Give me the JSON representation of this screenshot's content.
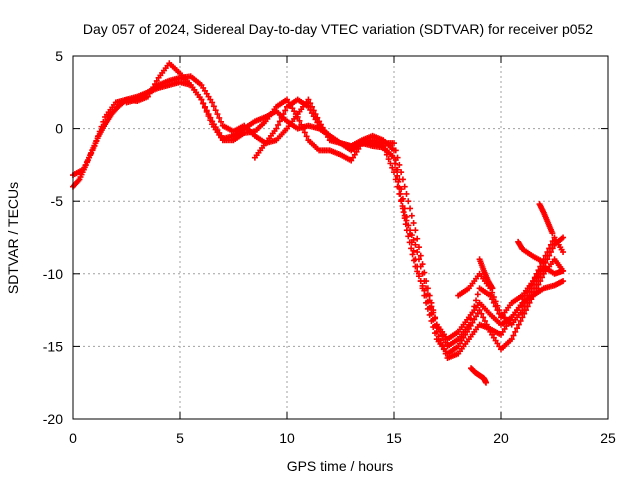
{
  "chart_data": {
    "type": "scatter",
    "title": "Day 057 of 2024, Sidereal Day-to-day VTEC variation (SDTVAR) for receiver p052",
    "xlabel": "GPS time / hours",
    "ylabel": "SDTVAR / TECUs",
    "xlim": [
      0,
      25
    ],
    "ylim": [
      -20,
      5
    ],
    "xticks": [
      0,
      5,
      10,
      15,
      20,
      25
    ],
    "yticks": [
      5,
      0,
      -5,
      -10,
      -15,
      -20
    ],
    "grid": true,
    "legend": "none",
    "marker": "plus",
    "color": "#ff0000",
    "series": [
      {
        "x": [
          0.0,
          0.3,
          0.6,
          0.9,
          1.2,
          1.5,
          1.8,
          2.1,
          2.5,
          3.0,
          3.5,
          4.0,
          4.5,
          5.0,
          5.5,
          6.0,
          6.5,
          7.0,
          7.5,
          8.0,
          8.5,
          9.0,
          9.5,
          10.0,
          10.5,
          11.0,
          11.5,
          12.0,
          12.5,
          13.0,
          13.5,
          14.0,
          14.5,
          15.0,
          15.3,
          15.6,
          16.0,
          16.5,
          17.0,
          17.5,
          18.0,
          18.5,
          19.0,
          19.5,
          20.0,
          20.5,
          21.0,
          21.5,
          22.0,
          22.5,
          22.9
        ],
        "y": [
          -4.0,
          -3.5,
          -2.5,
          -1.5,
          -0.5,
          0.3,
          1.0,
          1.5,
          2.0,
          2.2,
          2.5,
          2.8,
          3.0,
          3.2,
          3.0,
          2.0,
          0.5,
          -0.7,
          -0.5,
          0.0,
          0.5,
          0.8,
          1.2,
          0.5,
          0.0,
          0.2,
          0.0,
          -0.5,
          -1.0,
          -1.2,
          -1.0,
          -1.2,
          -1.3,
          -2.0,
          -4.5,
          -7.0,
          -9.5,
          -11.5,
          -14.0,
          -15.8,
          -15.5,
          -14.5,
          -13.5,
          -13.8,
          -14.2,
          -13.0,
          -12.0,
          -11.5,
          -11.0,
          -10.8,
          -10.5
        ]
      },
      {
        "x": [
          0.0,
          0.5,
          1.0,
          1.5,
          2.0,
          2.5,
          3.0,
          3.5,
          4.0,
          4.5,
          5.0,
          5.5,
          6.0,
          6.5,
          7.0,
          7.5,
          8.0,
          8.5,
          9.0,
          9.5,
          10.0,
          10.5,
          11.0,
          11.5,
          12.0,
          12.5,
          13.0,
          13.5,
          14.0,
          14.5,
          15.0,
          15.5,
          16.0,
          16.5,
          17.0,
          17.5,
          18.0,
          18.5,
          19.0,
          19.5,
          20.0,
          20.5,
          21.0,
          21.5,
          22.0,
          22.5,
          22.9
        ],
        "y": [
          -3.2,
          -2.8,
          -1.2,
          0.8,
          1.8,
          2.0,
          1.9,
          2.2,
          3.5,
          4.5,
          3.8,
          3.0,
          2.0,
          0.3,
          -0.8,
          -0.8,
          -0.3,
          -0.2,
          0.5,
          1.5,
          2.0,
          0.8,
          -0.8,
          -1.5,
          -1.5,
          -1.8,
          -2.2,
          -1.0,
          -1.0,
          -1.2,
          -3.0,
          -6.0,
          -8.0,
          -11.0,
          -13.5,
          -15.0,
          -14.5,
          -13.5,
          -11.0,
          -11.5,
          -13.0,
          -12.0,
          -11.5,
          -10.5,
          -9.5,
          -10.0,
          -9.8
        ]
      },
      {
        "x": [
          2.5,
          3.0,
          3.5,
          4.0,
          4.5,
          5.0,
          5.5,
          6.0,
          6.5,
          7.0,
          7.5,
          8.0,
          8.5,
          9.0,
          9.5,
          10.0,
          10.5,
          11.0,
          11.5,
          12.0,
          12.5,
          13.0,
          13.5,
          14.0,
          14.5,
          15.0,
          15.5,
          16.0,
          16.5,
          17.0,
          17.5,
          18.0,
          18.5,
          19.0,
          19.5,
          20.0,
          20.5,
          21.0,
          21.5,
          22.0,
          22.5,
          22.9
        ],
        "y": [
          1.8,
          2.0,
          2.5,
          3.0,
          3.3,
          3.5,
          3.6,
          3.0,
          1.8,
          0.2,
          -0.2,
          0.2,
          -0.5,
          -1.0,
          -0.8,
          0.0,
          1.0,
          2.0,
          0.5,
          -0.8,
          -1.0,
          -1.2,
          -0.8,
          -0.5,
          -0.8,
          -1.5,
          -5.5,
          -9.0,
          -12.0,
          -14.5,
          -15.5,
          -15.0,
          -13.8,
          -12.5,
          -14.0,
          -15.2,
          -14.5,
          -13.0,
          -11.5,
          -10.0,
          -9.0,
          -9.8
        ]
      },
      {
        "x": [
          8.5,
          9.0,
          9.5,
          10.0,
          10.5,
          11.0,
          11.5,
          12.0,
          12.5,
          13.0,
          13.5,
          14.0,
          14.5,
          15.0,
          15.5,
          16.0,
          16.5,
          17.0,
          17.5,
          18.0,
          18.5,
          19.0,
          19.5,
          20.0,
          20.5,
          21.0,
          21.5,
          22.0,
          22.5,
          22.9
        ],
        "y": [
          -2.0,
          -1.0,
          0.0,
          1.5,
          2.0,
          1.5,
          0.2,
          -0.5,
          -1.0,
          -1.5,
          -1.0,
          -0.8,
          -1.0,
          -1.0,
          -4.0,
          -7.0,
          -10.5,
          -13.5,
          -14.5,
          -14.0,
          -13.0,
          -12.0,
          -12.8,
          -13.5,
          -13.0,
          -12.0,
          -10.5,
          -9.0,
          -7.5,
          -8.5
        ]
      },
      {
        "x": [
          18.0,
          18.5,
          19.0,
          19.5,
          20.0,
          20.5,
          21.0,
          21.5,
          22.0,
          22.5,
          22.9
        ],
        "y": [
          -11.5,
          -11.0,
          -10.0,
          -11.0,
          -12.8,
          -13.5,
          -12.5,
          -11.0,
          -9.5,
          -8.0,
          -7.5
        ]
      },
      {
        "x": [
          18.6,
          18.8,
          19.0,
          19.2,
          19.3
        ],
        "y": [
          -16.5,
          -16.8,
          -17.0,
          -17.2,
          -17.5
        ]
      },
      {
        "x": [
          20.8,
          21.0,
          21.5,
          22.0
        ],
        "y": [
          -7.8,
          -8.3,
          -8.8,
          -9.2
        ]
      },
      {
        "x": [
          21.8,
          22.0,
          22.2,
          22.4
        ],
        "y": [
          -5.2,
          -5.8,
          -6.5,
          -7.2
        ]
      },
      {
        "x": [
          19.0,
          19.2,
          19.4,
          19.6
        ],
        "y": [
          -9.0,
          -9.8,
          -10.5,
          -11.0
        ]
      }
    ]
  }
}
